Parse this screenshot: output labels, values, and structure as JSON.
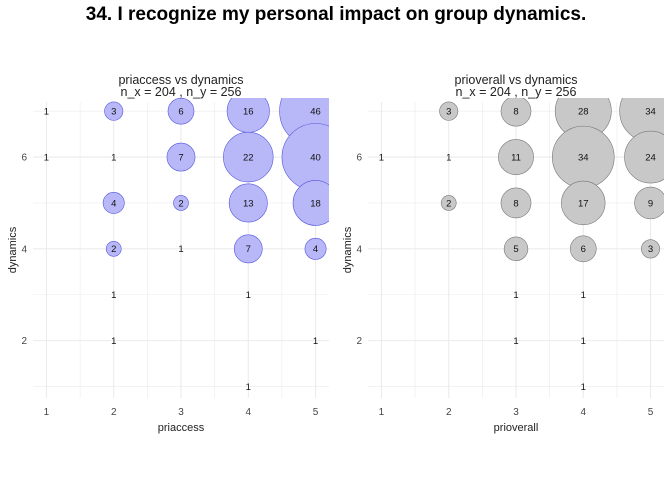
{
  "title": "34. I recognize my personal impact on group dynamics.",
  "colors": {
    "left_fill": "#b8b8f8",
    "left_stroke": "#5555dd",
    "right_fill": "#c8c8c8",
    "right_stroke": "#777777",
    "grid": "#ebebeb"
  },
  "chart_data": [
    {
      "type": "scatter",
      "title": "priaccess vs dynamics",
      "subtitle": "n_x = 204 , n_y = 256",
      "xlabel": "priaccess",
      "ylabel": "dynamics",
      "x_ticks": [
        1,
        2,
        3,
        4,
        5
      ],
      "y_ticks": [
        2,
        4,
        6
      ],
      "xlim": [
        0.8,
        5.2
      ],
      "ylim": [
        0.75,
        7.2
      ],
      "points": [
        {
          "x": 1,
          "y": 7,
          "n": 1
        },
        {
          "x": 2,
          "y": 7,
          "n": 3
        },
        {
          "x": 3,
          "y": 7,
          "n": 6
        },
        {
          "x": 4,
          "y": 7,
          "n": 16
        },
        {
          "x": 5,
          "y": 7,
          "n": 46
        },
        {
          "x": 1,
          "y": 6,
          "n": 1
        },
        {
          "x": 2,
          "y": 6,
          "n": 1
        },
        {
          "x": 3,
          "y": 6,
          "n": 7
        },
        {
          "x": 4,
          "y": 6,
          "n": 22
        },
        {
          "x": 5,
          "y": 6,
          "n": 40
        },
        {
          "x": 2,
          "y": 5,
          "n": 4
        },
        {
          "x": 3,
          "y": 5,
          "n": 2
        },
        {
          "x": 4,
          "y": 5,
          "n": 13
        },
        {
          "x": 5,
          "y": 5,
          "n": 18
        },
        {
          "x": 2,
          "y": 4,
          "n": 2
        },
        {
          "x": 3,
          "y": 4,
          "n": 1
        },
        {
          "x": 4,
          "y": 4,
          "n": 7
        },
        {
          "x": 5,
          "y": 4,
          "n": 4
        },
        {
          "x": 2,
          "y": 3,
          "n": 1
        },
        {
          "x": 4,
          "y": 3,
          "n": 1
        },
        {
          "x": 2,
          "y": 2,
          "n": 1
        },
        {
          "x": 5,
          "y": 2,
          "n": 1
        },
        {
          "x": 4,
          "y": 1,
          "n": 1
        }
      ]
    },
    {
      "type": "scatter",
      "title": "prioverall vs dynamics",
      "subtitle": "n_x = 204 , n_y = 256",
      "xlabel": "prioverall",
      "ylabel": "dynamics",
      "x_ticks": [
        1,
        2,
        3,
        4,
        5
      ],
      "y_ticks": [
        2,
        4,
        6
      ],
      "xlim": [
        0.8,
        5.2
      ],
      "ylim": [
        0.75,
        7.2
      ],
      "points": [
        {
          "x": 2,
          "y": 7,
          "n": 3
        },
        {
          "x": 3,
          "y": 7,
          "n": 8
        },
        {
          "x": 4,
          "y": 7,
          "n": 28
        },
        {
          "x": 5,
          "y": 7,
          "n": 34
        },
        {
          "x": 1,
          "y": 6,
          "n": 1
        },
        {
          "x": 2,
          "y": 6,
          "n": 1
        },
        {
          "x": 3,
          "y": 6,
          "n": 11
        },
        {
          "x": 4,
          "y": 6,
          "n": 34
        },
        {
          "x": 5,
          "y": 6,
          "n": 24
        },
        {
          "x": 2,
          "y": 5,
          "n": 2
        },
        {
          "x": 3,
          "y": 5,
          "n": 8
        },
        {
          "x": 4,
          "y": 5,
          "n": 17
        },
        {
          "x": 5,
          "y": 5,
          "n": 9
        },
        {
          "x": 3,
          "y": 4,
          "n": 5
        },
        {
          "x": 4,
          "y": 4,
          "n": 6
        },
        {
          "x": 5,
          "y": 4,
          "n": 3
        },
        {
          "x": 3,
          "y": 3,
          "n": 1
        },
        {
          "x": 4,
          "y": 3,
          "n": 1
        },
        {
          "x": 3,
          "y": 2,
          "n": 1
        },
        {
          "x": 4,
          "y": 2,
          "n": 1
        },
        {
          "x": 4,
          "y": 1,
          "n": 1
        }
      ]
    }
  ]
}
